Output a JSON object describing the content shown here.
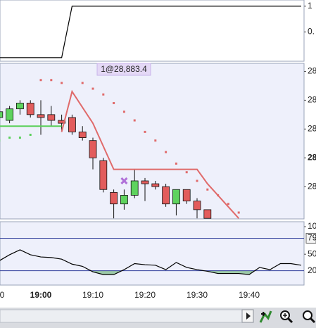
{
  "chart_data": [
    {
      "type": "line",
      "xlim": [
        1132.16,
        1190.54
      ],
      "ylim": [
        -0.07,
        1.12
      ],
      "yticks": [
        1,
        {
          "value": 0.5,
          "label": "0."
        }
      ],
      "series": [
        {
          "color": "#000000",
          "x": [
            1132,
            1144,
            1146,
            1190
          ],
          "values": [
            0,
            0,
            1,
            1
          ]
        }
      ]
    },
    {
      "type": "candlestick",
      "xlim": [
        1132.16,
        1190.54
      ],
      "ylim": [
        28874.7,
        28888.2
      ],
      "yticks": [
        {
          "value": 28877.5,
          "label": "28"
        },
        {
          "value": 28880,
          "label": "28"
        },
        {
          "value": 28882.5,
          "label": "28"
        },
        {
          "value": 28885,
          "label": "28"
        },
        {
          "value": 28887.5,
          "label": "28"
        }
      ],
      "up_color": "#5ed35e",
      "down_color": "#e25c5c",
      "x": [
        1132,
        1134,
        1136,
        1138,
        1140,
        1142,
        1144,
        1146,
        1148,
        1150,
        1152,
        1154,
        1156,
        1158,
        1160,
        1162,
        1164,
        1166,
        1168,
        1170,
        1172
      ],
      "open": [
        28883.5,
        28883.25,
        28884.25,
        28884.75,
        28883.75,
        28883.75,
        28883.25,
        28883.5,
        28882.25,
        28881.5,
        28879.75,
        28877.0,
        28876.0,
        28876.75,
        28878.0,
        28877.75,
        28877.5,
        28876.0,
        28877.25,
        28876.25,
        28875.5
      ],
      "high": [
        28884.25,
        28884.5,
        28885.0,
        28885.0,
        28885.0,
        28884.5,
        28883.75,
        28883.75,
        28882.75,
        28881.75,
        28880.0,
        28877.25,
        28877.25,
        28879.0,
        28878.25,
        28878.0,
        28877.75,
        28877.25,
        28877.25,
        28876.5,
        28875.5
      ],
      "low": [
        28883.25,
        28883.0,
        28883.75,
        28883.5,
        28882.0,
        28882.75,
        28882.25,
        28882.0,
        28881.5,
        28879.0,
        28877.0,
        28874.75,
        28875.5,
        28876.5,
        28876.25,
        28877.25,
        28875.75,
        28875.0,
        28876.0,
        28874.75,
        28874.75
      ],
      "close": [
        28884.0,
        28884.25,
        28884.75,
        28883.75,
        28883.5,
        28883.25,
        28883.0,
        28882.25,
        28881.75,
        28880.0,
        28877.25,
        28876.0,
        28876.75,
        28878.0,
        28877.75,
        28877.5,
        28876.0,
        28877.25,
        28876.25,
        28875.5,
        28874.75
      ],
      "series": [
        {
          "style": "line",
          "color": "#5ad05a",
          "x": [
            1132,
            1144
          ],
          "values": [
            28882.75,
            28882.75
          ]
        },
        {
          "style": "line",
          "color": "#e06a6a",
          "x": [
            1144,
            1146,
            1150,
            1154,
            1170,
            1172,
            1176,
            1178
          ],
          "values": [
            28882.25,
            28885.75,
            28883.0,
            28879.0,
            28879.0,
            28877.75,
            28875.75,
            28874.75
          ]
        },
        {
          "style": "dots",
          "color": "#5ad05a",
          "x": [
            1132,
            1134,
            1136,
            1138
          ],
          "values": [
            28881.5,
            28881.75,
            28881.75,
            28882.0
          ]
        },
        {
          "style": "dots",
          "color": "#e06a6a",
          "x": [
            1140,
            1142,
            1144,
            1148,
            1150,
            1152,
            1154,
            1156,
            1158,
            1160,
            1162,
            1164,
            1166,
            1168,
            1170,
            1172,
            1174,
            1176,
            1178
          ],
          "values": [
            28886.75,
            28886.75,
            28886.5,
            28886.5,
            28886.0,
            28885.5,
            28884.75,
            28884.0,
            28883.25,
            28882.25,
            28881.5,
            28880.5,
            28879.5,
            28878.75,
            28878.0,
            28877.25,
            28876.75,
            28876.0,
            28875.25
          ]
        }
      ],
      "markers": [
        {
          "x": 1156,
          "value": 28878.0,
          "color": "#b070d8"
        }
      ],
      "annotation": "1@28,883.4"
    },
    {
      "type": "line",
      "xlim": [
        1132.16,
        1190.54
      ],
      "ylim": [
        -6,
        109
      ],
      "yticks": [
        {
          "value": 100,
          "label": "10"
        },
        50
      ],
      "levels": [
        {
          "value": 79,
          "boxed": true
        },
        {
          "value": 20,
          "shade_below": "#9cc9a8"
        }
      ],
      "xticks": [
        {
          "value": 1130,
          "label": "0"
        },
        {
          "value": 1140,
          "label": "19:00"
        },
        {
          "value": 1150,
          "label": "19:10"
        },
        {
          "value": 1160,
          "label": "19:20"
        },
        {
          "value": 1170,
          "label": "19:30"
        },
        {
          "value": 1180,
          "label": "19:40"
        }
      ],
      "series": [
        {
          "color": "#000000",
          "x": [
            1132,
            1134,
            1136,
            1138,
            1140,
            1142,
            1144,
            1146,
            1148,
            1150,
            1152,
            1154,
            1156,
            1158,
            1160,
            1162,
            1164,
            1166,
            1168,
            1170,
            1172,
            1174,
            1176,
            1178,
            1180,
            1182,
            1184,
            1186,
            1188,
            1190
          ],
          "values": [
            38,
            49,
            58,
            49,
            45,
            44,
            41,
            32,
            28,
            18,
            13,
            13,
            22,
            33,
            31,
            30,
            22,
            35,
            26,
            22,
            19,
            15,
            15,
            15,
            13,
            26,
            22,
            33,
            33,
            30
          ]
        }
      ]
    }
  ]
}
